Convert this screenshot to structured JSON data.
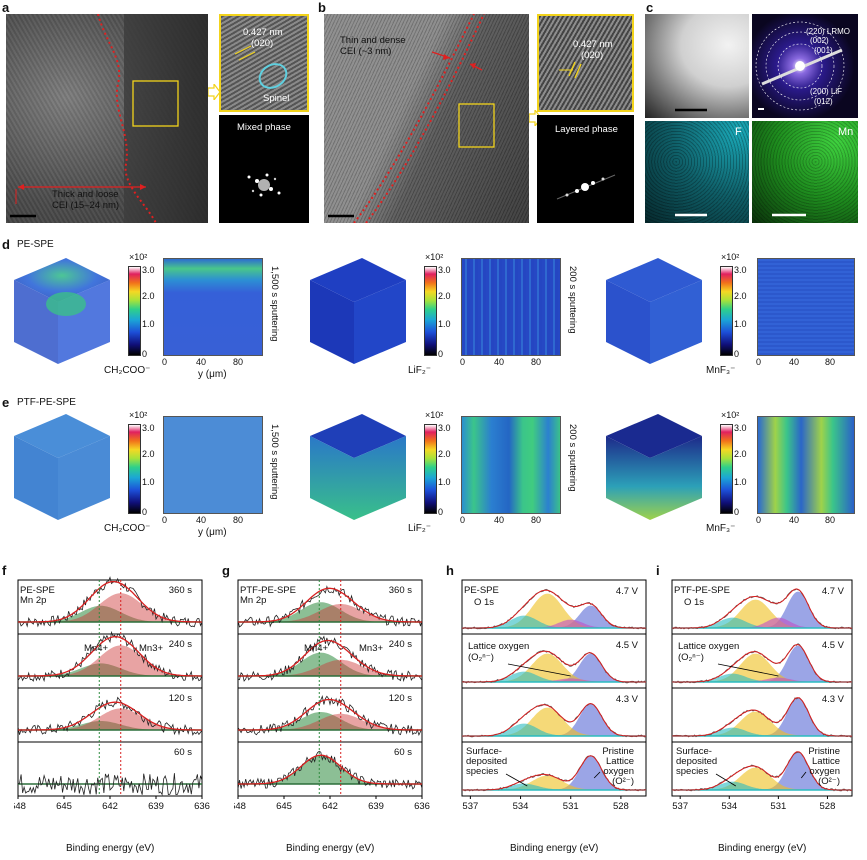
{
  "panels": {
    "a": {
      "label": "a",
      "zoom_d": "0.427 nm",
      "zoom_hkl": "(020)",
      "spinel": "Spinel",
      "fft_label": "Mixed phase",
      "cei_label_1": "Thick and loose",
      "cei_label_2": "CEI (15–24 nm)"
    },
    "b": {
      "label": "b",
      "cei_label_1": "Thin and dense",
      "cei_label_2": "CEI (~3 nm)",
      "zoom_d": "0.427 nm",
      "zoom_hkl": "(020)",
      "fft_label": "Layered phase"
    },
    "c": {
      "label": "c",
      "saed": [
        "(220) LRMO",
        "(002)",
        "(001)",
        "(200) LiF",
        "(012)"
      ],
      "map_f": "F",
      "map_mn": "Mn"
    },
    "d": {
      "label": "d",
      "title": "PE-SPE"
    },
    "e": {
      "label": "e",
      "title": "PTF-PE-SPE"
    },
    "f": {
      "label": "f",
      "title": "PE-SPE",
      "sub": "Mn 2p"
    },
    "g": {
      "label": "g",
      "title": "PTF-PE-SPE",
      "sub": "Mn 2p"
    },
    "h": {
      "label": "h",
      "title": "PE-SPE",
      "sub": "O 1s"
    },
    "i": {
      "label": "i",
      "title": "PTF-PE-SPE",
      "sub": "O 1s"
    }
  },
  "tof": {
    "cb_exp": "×10²",
    "cb_ticks": [
      "3.0",
      "2.0",
      "1.0",
      "0"
    ],
    "y_ticks": [
      "0",
      "40",
      "80"
    ],
    "y_label": "y (μm)",
    "species": [
      "CH₂COO⁻",
      "LiF₂⁻",
      "MnF₃⁻"
    ],
    "sputter": [
      "1,500 s sputtering",
      "200 s sputtering",
      "1,500 s sputtering"
    ]
  },
  "xps_mn": {
    "times": [
      "360 s",
      "240 s",
      "120 s",
      "60 s"
    ],
    "x_ticks": [
      "648",
      "645",
      "642",
      "639",
      "636"
    ],
    "xlabel": "Binding energy (eV)",
    "ann": [
      "Mn4+",
      "Mn3+"
    ]
  },
  "xps_o": {
    "volts": [
      "4.7 V",
      "4.5 V",
      "4.3 V"
    ],
    "x_ticks": [
      "537",
      "534",
      "531",
      "528"
    ],
    "xlabel": "Binding energy (eV)",
    "lattice_label": "Lattice oxygen",
    "lattice_formula": "(O₂ⁿ⁻)",
    "surface_label": "Surface-\ndeposited\nspecies",
    "pristine_label": "Pristine\nLattice\noxygen\n(O²⁻)"
  },
  "colors": {
    "cei_line": "#e02020",
    "zoom_box": "#f2d31b",
    "spinel_ring": "#5fd0e0",
    "f_map": "#19b5c4",
    "mn_map": "#2fbf2f",
    "mn4": "#2e8b3e",
    "mn3": "#cc3333",
    "fit": "#d82020"
  }
}
